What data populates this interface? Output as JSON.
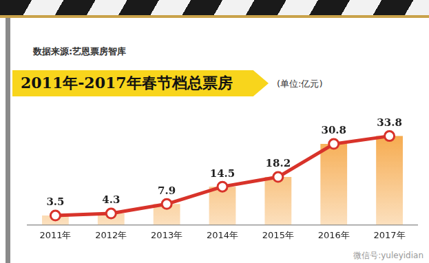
{
  "source": "数据来源:艺恩票房智库",
  "watermark": "微信号:yuleyidian",
  "chart_data": {
    "type": "bar",
    "title": "2011年-2017年春节档总票房",
    "subtitle": "(单位:亿元)",
    "categories": [
      "2011年",
      "2012年",
      "2013年",
      "2014年",
      "2015年",
      "2016年",
      "2017年"
    ],
    "series": [
      {
        "type": "bar",
        "color": "#f5a23c",
        "values": [
          3.5,
          4.3,
          7.9,
          14.5,
          18.2,
          30.8,
          33.8
        ]
      },
      {
        "type": "line",
        "color": "#d8332a",
        "marker": "circle",
        "line_style": "solid",
        "values": [
          3.5,
          4.3,
          7.9,
          14.5,
          18.2,
          30.8,
          33.8
        ]
      }
    ],
    "ylim": [
      0,
      40
    ],
    "grid": false,
    "data_labels": true,
    "tick_labels": "x"
  }
}
